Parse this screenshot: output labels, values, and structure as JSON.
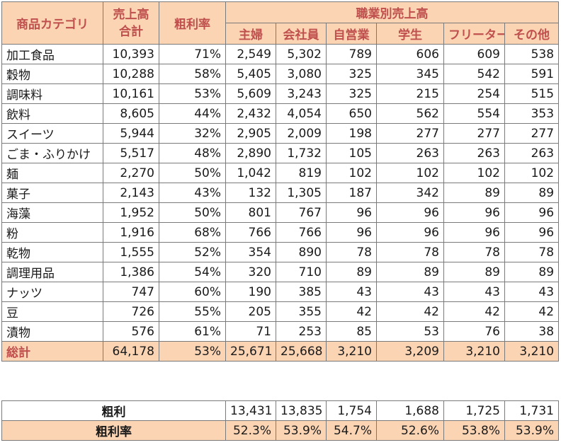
{
  "header": {
    "category": "商品カテゴリ",
    "sales_total": "売上高合計",
    "margin_rate": "粗利率",
    "by_occupation": "職業別売上高",
    "occupations": [
      "主婦",
      "会社員",
      "自営業",
      "学生",
      "フリーター",
      "その他"
    ]
  },
  "rows": [
    {
      "category": "加工食品",
      "total": "10,393",
      "rate": "71%",
      "vals": [
        "2,549",
        "5,302",
        "789",
        "606",
        "609",
        "538"
      ]
    },
    {
      "category": "穀物",
      "total": "10,288",
      "rate": "58%",
      "vals": [
        "5,405",
        "3,080",
        "325",
        "345",
        "542",
        "591"
      ]
    },
    {
      "category": "調味料",
      "total": "10,161",
      "rate": "53%",
      "vals": [
        "5,609",
        "3,243",
        "325",
        "215",
        "254",
        "515"
      ]
    },
    {
      "category": "飲料",
      "total": "8,605",
      "rate": "44%",
      "vals": [
        "2,432",
        "4,054",
        "650",
        "562",
        "554",
        "353"
      ]
    },
    {
      "category": "スイーツ",
      "total": "5,944",
      "rate": "32%",
      "vals": [
        "2,905",
        "2,009",
        "198",
        "277",
        "277",
        "277"
      ]
    },
    {
      "category": "ごま・ふりかけ",
      "total": "5,517",
      "rate": "48%",
      "vals": [
        "2,890",
        "1,732",
        "105",
        "263",
        "263",
        "263"
      ]
    },
    {
      "category": "麺",
      "total": "2,270",
      "rate": "50%",
      "vals": [
        "1,042",
        "819",
        "102",
        "102",
        "102",
        "102"
      ]
    },
    {
      "category": "菓子",
      "total": "2,143",
      "rate": "43%",
      "vals": [
        "132",
        "1,305",
        "187",
        "342",
        "89",
        "89"
      ]
    },
    {
      "category": "海藻",
      "total": "1,952",
      "rate": "50%",
      "vals": [
        "801",
        "767",
        "96",
        "96",
        "96",
        "96"
      ]
    },
    {
      "category": "粉",
      "total": "1,916",
      "rate": "68%",
      "vals": [
        "766",
        "766",
        "96",
        "96",
        "96",
        "96"
      ]
    },
    {
      "category": "乾物",
      "total": "1,555",
      "rate": "52%",
      "vals": [
        "354",
        "890",
        "78",
        "78",
        "78",
        "78"
      ]
    },
    {
      "category": "調理用品",
      "total": "1,386",
      "rate": "54%",
      "vals": [
        "320",
        "710",
        "89",
        "89",
        "89",
        "89"
      ]
    },
    {
      "category": "ナッツ",
      "total": "747",
      "rate": "60%",
      "vals": [
        "190",
        "385",
        "43",
        "43",
        "43",
        "43"
      ]
    },
    {
      "category": "豆",
      "total": "726",
      "rate": "55%",
      "vals": [
        "205",
        "355",
        "42",
        "42",
        "42",
        "42"
      ]
    },
    {
      "category": "漬物",
      "total": "576",
      "rate": "61%",
      "vals": [
        "71",
        "253",
        "85",
        "53",
        "76",
        "38"
      ]
    }
  ],
  "total_row": {
    "category": "総計",
    "total": "64,178",
    "rate": "53%",
    "vals": [
      "25,671",
      "25,668",
      "3,210",
      "3,209",
      "3,210",
      "3,210"
    ]
  },
  "summary": {
    "gross_profit": {
      "label": "粗利",
      "vals": [
        "13,431",
        "13,835",
        "1,754",
        "1,688",
        "1,725",
        "1,731"
      ]
    },
    "gross_margin": {
      "label": "粗利率",
      "vals": [
        "52.3%",
        "53.9%",
        "54.7%",
        "52.6%",
        "53.8%",
        "53.9%"
      ]
    }
  },
  "colors": {
    "header_bg": "#fbd4b4",
    "header_text": "#c0504d",
    "border": "#7a7a7a"
  }
}
